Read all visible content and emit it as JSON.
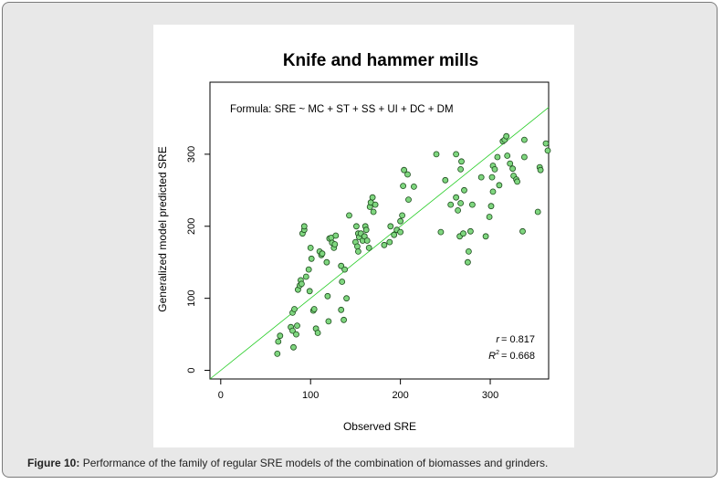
{
  "caption": {
    "label": "Figure 10:",
    "text": " Performance of the family of regular SRE models of the combination of biomasses and grinders."
  },
  "chart_data": {
    "type": "scatter",
    "title": "Knife and hammer mills",
    "formula": "Formula: SRE ~ MC + ST + SS + UI + DC + DM",
    "xlabel": "Observed SRE",
    "ylabel": "Generalized model predicted SRE",
    "xlim": [
      -12,
      365
    ],
    "ylim": [
      -12,
      400
    ],
    "xticks": [
      0,
      100,
      200,
      300
    ],
    "yticks": [
      0,
      100,
      200,
      300
    ],
    "x_tick_labels": [
      "0",
      "100",
      "200",
      "300"
    ],
    "y_tick_labels": [
      "0",
      "100",
      "200",
      "300"
    ],
    "reference_line": "y = x",
    "stats": {
      "r_label": "r",
      "r_value": "= 0.817",
      "r2_label": "R",
      "r2_sup": "2",
      "r2_value": "= 0.668"
    },
    "grid": false,
    "colors": {
      "point_fill": "#7fd67f",
      "point_stroke": "#1e4d1e",
      "line": "#22cc22"
    },
    "x": [
      63,
      64,
      66,
      78,
      80,
      80,
      81,
      82,
      84,
      85,
      86,
      88,
      89,
      90,
      91,
      93,
      93,
      95,
      98,
      99,
      100,
      101,
      103,
      104,
      106,
      108,
      110,
      112,
      113,
      118,
      119,
      120,
      121,
      123,
      124,
      126,
      127,
      128,
      134,
      134,
      135,
      137,
      138,
      140,
      143,
      150,
      151,
      152,
      153,
      153,
      154,
      156,
      158,
      160,
      161,
      162,
      163,
      165,
      166,
      167,
      169,
      170,
      172,
      182,
      188,
      189,
      193,
      196,
      200,
      200,
      202,
      203,
      204,
      208,
      209,
      215,
      240,
      245,
      250,
      256,
      262,
      262,
      264,
      266,
      267,
      267,
      268,
      270,
      271,
      275,
      276,
      278,
      280,
      290,
      295,
      299,
      301,
      302,
      303,
      303,
      305,
      308,
      310,
      314,
      316,
      318,
      319,
      322,
      325,
      326,
      329,
      330,
      336,
      338,
      338,
      353,
      355,
      356,
      362,
      364
    ],
    "y": [
      23,
      40,
      48,
      60,
      80,
      55,
      32,
      85,
      50,
      62,
      112,
      118,
      125,
      120,
      190,
      195,
      200,
      130,
      140,
      110,
      170,
      155,
      83,
      85,
      58,
      52,
      165,
      160,
      162,
      150,
      103,
      68,
      183,
      184,
      177,
      170,
      175,
      187,
      84,
      145,
      123,
      70,
      140,
      100,
      215,
      178,
      200,
      172,
      165,
      190,
      185,
      190,
      180,
      186,
      200,
      195,
      180,
      170,
      227,
      233,
      240,
      220,
      230,
      174,
      178,
      200,
      188,
      195,
      207,
      192,
      215,
      256,
      278,
      272,
      237,
      255,
      300,
      192,
      264,
      230,
      300,
      240,
      222,
      186,
      232,
      279,
      290,
      190,
      250,
      150,
      165,
      193,
      230,
      268,
      186,
      213,
      228,
      268,
      248,
      284,
      279,
      296,
      257,
      318,
      320,
      325,
      298,
      287,
      280,
      270,
      265,
      262,
      193,
      320,
      296,
      220,
      282,
      278,
      315,
      305
    ]
  }
}
